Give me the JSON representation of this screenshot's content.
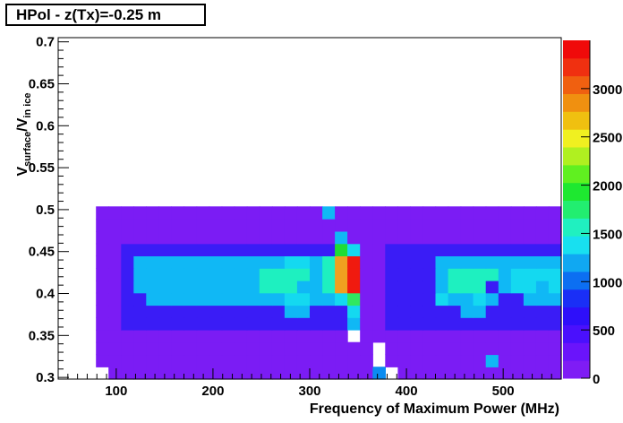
{
  "chart_data": {
    "type": "heatmap",
    "title": "HPol - z(Tx)=-0.25 m",
    "xlabel": "Frequency of Maximum Power (MHz)",
    "ylabel_main": "V",
    "ylabel_sub1": "surface",
    "ylabel_mid": "/V",
    "ylabel_sub2": "in ice",
    "xlim": [
      40,
      560
    ],
    "ylim": [
      0.298,
      0.705
    ],
    "x_ticks": [
      100,
      200,
      300,
      400,
      500
    ],
    "y_ticks": [
      0.3,
      0.35,
      0.4,
      0.45,
      0.5,
      0.55,
      0.6,
      0.65,
      0.7
    ],
    "y_tick_labels": [
      "0.3",
      "0.35",
      "0.4",
      "0.45",
      "0.5",
      "0.55",
      "0.6",
      "0.65",
      "0.7"
    ],
    "colorbar": {
      "min": 0,
      "max": 3500,
      "ticks": [
        0,
        500,
        1000,
        1500,
        2000,
        2500,
        3000
      ]
    },
    "x_bins": {
      "start": 53,
      "width": 13
    },
    "y_bins": {
      "start": 0.298,
      "width": 0.0147
    },
    "grid_rows_bottom_to_top": [
      "00.44444444444444444444410444444444444440.44440.",
      "004444444444444444444444.444444449444444444494400",
      "004444444444444444444444.44444444444444444444440",
      "0044444444444444444444044444444444444444444440",
      "00448888888888888888889448888888888888898844440",
      "0044888888888888899888A448888889988888888844440",
      "00448899999999999AA99AC448888A99A98899988844440",
      "004489999999999BBB99BEF4488889BBB89AA9A88844440",
      "004489999999999BBBB9BEF4488889BBBB9AAAA9844440",
      "00448999999999999AA9BEF448888999999999998444440",
      "004488888888888888888DA4488888888888888884444440",
      "0044444444444444444449444444444444444444444440",
      "0044444444444444444444444444444444444444444440",
      "004444444444444444449444444444444444444444440"
    ]
  }
}
